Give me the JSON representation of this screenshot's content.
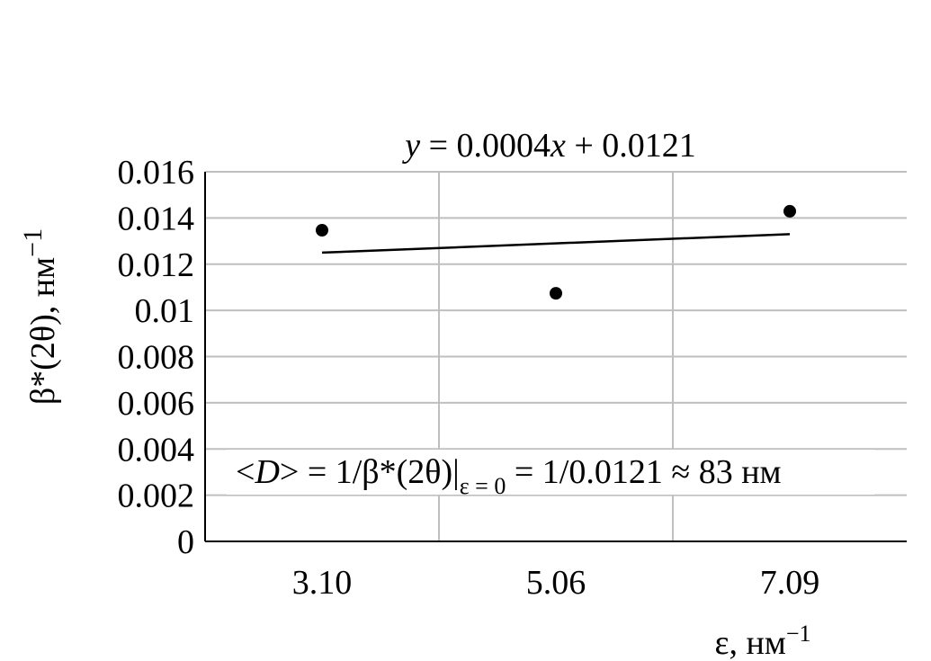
{
  "chart_data": {
    "type": "scatter",
    "title": "",
    "xlabel": "ε, нм",
    "xlabel_sup": "−1",
    "ylabel": "β*(2θ), нм",
    "ylabel_sup": "−1",
    "categories": [
      "3.10",
      "5.06",
      "7.09"
    ],
    "series": [
      {
        "name": "β*(2θ)",
        "values": [
          0.01347,
          0.01074,
          0.01429
        ],
        "marker": "circle",
        "color": "#000000"
      }
    ],
    "trendline": {
      "type": "linear",
      "slope": 0.0004,
      "intercept": 0.0121,
      "x_index_start": 1,
      "color": "#000000"
    },
    "ylim": [
      0,
      0.016
    ],
    "yticks": [
      "0",
      "0.002",
      "0.004",
      "0.006",
      "0.008",
      "0.01",
      "0.012",
      "0.014",
      "0.016"
    ],
    "grid": true,
    "equation": {
      "y": "y",
      "eq1": " = 0.0004",
      "x": "x",
      "eq2": " + 0.0121"
    },
    "annotation": {
      "lt": "<",
      "d": "D",
      "p1": "> = 1/β*(2θ)|",
      "sub": "ε = 0",
      "p2": " = 1/0.0121 ≈ 83 нм"
    }
  }
}
